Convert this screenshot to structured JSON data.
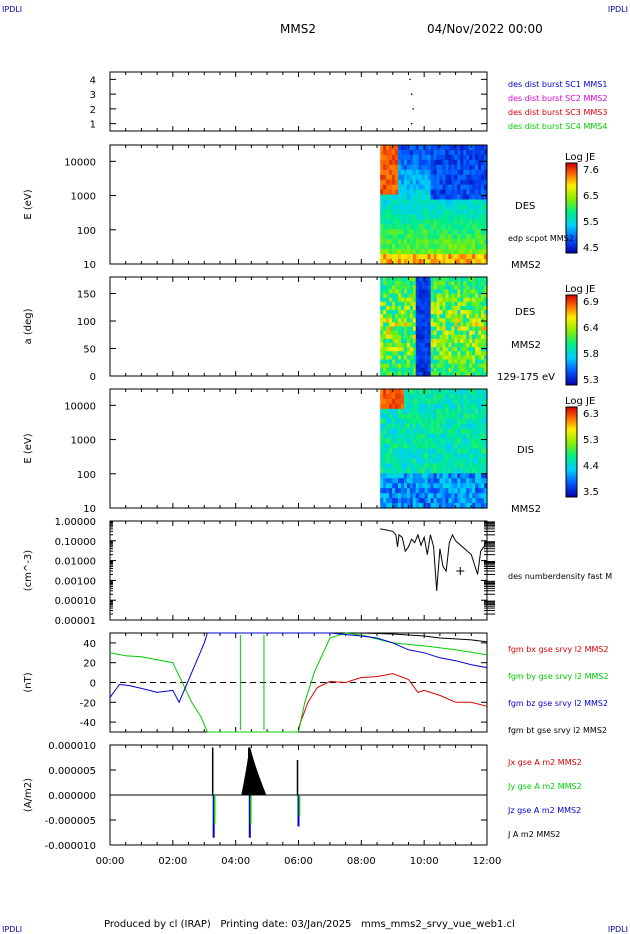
{
  "header": {
    "corner_tl": "IPDLI",
    "corner_tr": "IPDLI",
    "corner_bl": "IPDLI",
    "corner_br": "IPDLI",
    "spacecraft": "MMS2",
    "date": "04/Nov/2022 00:00"
  },
  "footer": {
    "produced_by": "Produced by cl (IRAP)",
    "printing_date": "Printing date: 03/Jan/2025",
    "filename": "mms_mms2_srvy_vue_web1.cl"
  },
  "colors": {
    "red": "#dd0000",
    "magenta": "#dd00dd",
    "green": "#00cc00",
    "blue": "#0000cc",
    "black": "#000000"
  },
  "chart_data": [
    {
      "type": "scatter",
      "id": "burst_flags",
      "yticks": [
        "4",
        "3",
        "2",
        "1"
      ],
      "ylim": [
        0.5,
        4.5
      ],
      "legend": [
        {
          "label": "des dist burst SC1 MMS1",
          "color": "#0000cc"
        },
        {
          "label": "des dist burst SC2 MMS2",
          "color": "#dd00dd"
        },
        {
          "label": "des dist burst SC3 MMS3",
          "color": "#dd0000"
        },
        {
          "label": "des dist burst SC4 MMS4",
          "color": "#00cc00"
        }
      ],
      "points": [
        {
          "x": 9.55,
          "y": 4
        },
        {
          "x": 9.6,
          "y": 3
        },
        {
          "x": 9.65,
          "y": 2
        },
        {
          "x": 9.6,
          "y": 1
        }
      ]
    },
    {
      "type": "heatmap",
      "id": "des_energy",
      "ylabel": "E (eV)",
      "yscale": "log",
      "ylim": [
        10,
        30000
      ],
      "yticks": [
        "10000",
        "1000",
        "100",
        "10"
      ],
      "data_start_hour": 8.6,
      "right_labels": [
        "DES",
        "edp scpot MMS2",
        "MMS2"
      ],
      "colorbar": {
        "title": "Log JE",
        "ticks": [
          "7.6",
          "6.5",
          "5.5",
          "4.5"
        ],
        "range": [
          4.5,
          7.6
        ]
      }
    },
    {
      "type": "heatmap",
      "id": "des_pitch",
      "ylabel": "a (deg)",
      "ylim": [
        0,
        180
      ],
      "yticks": [
        "150",
        "100",
        "50",
        "0"
      ],
      "data_start_hour": 8.6,
      "right_labels": [
        "DES",
        "MMS2",
        "129-175 eV"
      ],
      "colorbar": {
        "title": "Log JE",
        "ticks": [
          "6.9",
          "6.4",
          "5.8",
          "5.3"
        ],
        "range": [
          5.3,
          6.9
        ]
      }
    },
    {
      "type": "heatmap",
      "id": "dis_energy",
      "ylabel": "E (eV)",
      "yscale": "log",
      "ylim": [
        10,
        30000
      ],
      "yticks": [
        "10000",
        "1000",
        "100",
        "10"
      ],
      "data_start_hour": 8.6,
      "right_labels": [
        "DIS",
        "MMS2"
      ],
      "colorbar": {
        "title": "Log JE",
        "ticks": [
          "6.3",
          "5.3",
          "4.4",
          "3.5"
        ],
        "range": [
          3.5,
          6.3
        ]
      }
    },
    {
      "type": "line",
      "id": "density",
      "ylabel": "(cm^-3)",
      "yscale": "log",
      "ylim": [
        1e-05,
        1
      ],
      "yticks": [
        "1.00000",
        "0.10000",
        "0.01000",
        "0.00100",
        "0.00010",
        "0.00001"
      ],
      "series": [
        {
          "name": "des numberdensity fast M",
          "color": "#000000",
          "x": [
            8.6,
            8.8,
            9.0,
            9.1,
            9.15,
            9.2,
            9.3,
            9.4,
            9.5,
            9.6,
            9.7,
            9.8,
            9.9,
            10.0,
            10.1,
            10.2,
            10.3,
            10.4,
            10.5,
            10.6,
            10.7,
            10.8,
            10.9,
            11.0,
            11.5,
            11.7,
            11.8,
            11.9,
            12.0
          ],
          "y": [
            0.4,
            0.35,
            0.3,
            0.2,
            0.05,
            0.2,
            0.15,
            0.03,
            0.05,
            0.12,
            0.08,
            0.2,
            0.06,
            0.15,
            0.02,
            0.2,
            0.05,
            0.0003,
            0.04,
            0.005,
            0.003,
            0.08,
            0.2,
            0.1,
            0.02,
            0.002,
            0.03,
            0.05,
            0.1
          ]
        },
        {
          "name": "",
          "color": "#000000",
          "x": [
            11.15
          ],
          "y": [
            0.003
          ]
        }
      ]
    },
    {
      "type": "line",
      "id": "magnetic_field",
      "ylabel": "(nT)",
      "ylim": [
        -50,
        50
      ],
      "yticks": [
        "40",
        "20",
        "0",
        "-20",
        "-40"
      ],
      "legend": [
        {
          "label": "fgm bx gse srvy l2 MMS2",
          "color": "#dd0000"
        },
        {
          "label": "fgm by gse srvy l2 MMS2",
          "color": "#00cc00"
        },
        {
          "label": "fgm bz gse srvy l2 MMS2",
          "color": "#0000cc"
        },
        {
          "label": "fgm bt gse srvy l2 MMS2",
          "color": "#000000"
        }
      ],
      "series": [
        {
          "name": "fgm bx gse srvy l2 MMS2",
          "color": "#dd0000",
          "x": [
            6.0,
            6.3,
            6.6,
            7.0,
            7.5,
            8.0,
            8.5,
            9.0,
            9.5,
            9.8,
            10.0,
            10.5,
            11.0,
            11.5,
            12.0
          ],
          "y": [
            -46,
            -20,
            -5,
            1,
            0,
            5,
            6,
            9,
            3,
            -10,
            -8,
            -13,
            -20,
            -20,
            -24
          ]
        },
        {
          "name": "fgm by gse srvy l2 MMS2",
          "color": "#00cc00",
          "x": [
            0.0,
            0.5,
            1.0,
            1.5,
            2.0,
            2.3,
            2.6,
            2.9,
            3.1,
            6.0,
            6.2,
            6.5,
            7.0,
            7.5,
            8.0,
            9.0,
            10.0,
            11.0,
            12.0
          ],
          "y": [
            30,
            27,
            26,
            23,
            20,
            0,
            -20,
            -35,
            -50,
            -50,
            -20,
            10,
            45,
            50,
            48,
            40,
            37,
            33,
            28
          ]
        },
        {
          "name": "fgm bz gse srvy l2 MMS2",
          "color": "#0000cc",
          "x": [
            0.0,
            0.3,
            0.6,
            1.0,
            1.5,
            2.0,
            2.2,
            2.4,
            2.6,
            2.8,
            3.0,
            3.1,
            7.0,
            8.0,
            8.5,
            9.0,
            9.5,
            10.0,
            10.5,
            11.0,
            11.5,
            12.0
          ],
          "y": [
            -15,
            -2,
            -3,
            -6,
            -10,
            -8,
            -20,
            -5,
            10,
            25,
            40,
            50,
            50,
            47,
            45,
            40,
            33,
            30,
            25,
            22,
            18,
            15
          ]
        },
        {
          "name": "fgm bt gse srvy l2 MMS2",
          "color": "#000000",
          "x": [
            8.0,
            9.0,
            10.0,
            10.5,
            11.0,
            11.5,
            12.0
          ],
          "y": [
            50,
            49,
            47,
            45,
            44,
            43,
            41
          ]
        }
      ]
    },
    {
      "type": "line",
      "id": "current_density",
      "ylabel": "(A/m2)",
      "ylim": [
        -1e-05,
        1e-05
      ],
      "yticks": [
        "0.000010",
        "0.000005",
        "0.000000",
        "-0.000005",
        "-0.000010"
      ],
      "xticks": [
        "00:00",
        "02:00",
        "04:00",
        "06:00",
        "08:00",
        "10:00",
        "12:00"
      ],
      "xlim": [
        0,
        12
      ],
      "legend": [
        {
          "label": "Jx gse A m2 MMS2",
          "color": "#dd0000"
        },
        {
          "label": "Jy gse A m2 MMS2",
          "color": "#00cc00"
        },
        {
          "label": "Jz gse A m2 MMS2",
          "color": "#0000cc"
        },
        {
          "label": "J A m2 MMS2",
          "color": "#000000"
        }
      ],
      "events": [
        {
          "x": 3.3,
          "y": 9.5e-06
        },
        {
          "x": 4.45,
          "y": 9.5e-06
        },
        {
          "x": 6.0,
          "y": 7e-06
        }
      ]
    }
  ]
}
